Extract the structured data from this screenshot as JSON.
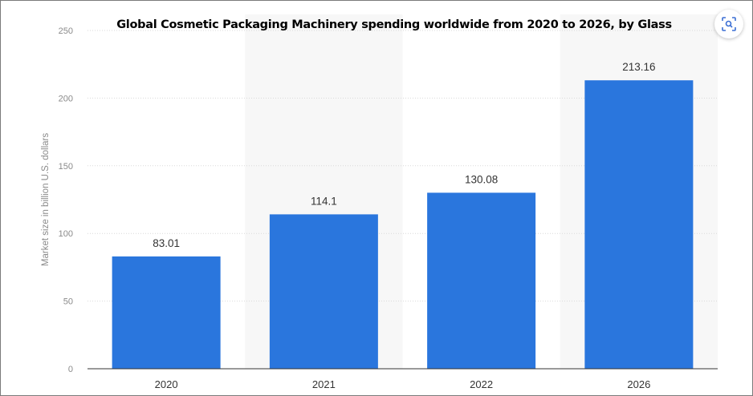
{
  "chart_data": {
    "type": "bar",
    "title": "Global Cosmetic Packaging Machinery spending worldwide from 2020 to 2026, by Glass",
    "categories": [
      "2020",
      "2021",
      "2022",
      "2026"
    ],
    "values": [
      83.01,
      114.1,
      130.08,
      213.16
    ],
    "data_labels": [
      "83.01",
      "114.1",
      "130.08",
      "213.16"
    ],
    "xlabel": "",
    "ylabel": "Market size in billion U.S. dollars",
    "ylim": [
      0,
      250
    ],
    "yticks": [
      0,
      50,
      100,
      150,
      200,
      250
    ],
    "grid": true,
    "bar_color": "#2a76dd",
    "alt_band_color": "#f7f7f7"
  },
  "toolbar": {
    "lens_icon": "lens-scan-icon"
  }
}
